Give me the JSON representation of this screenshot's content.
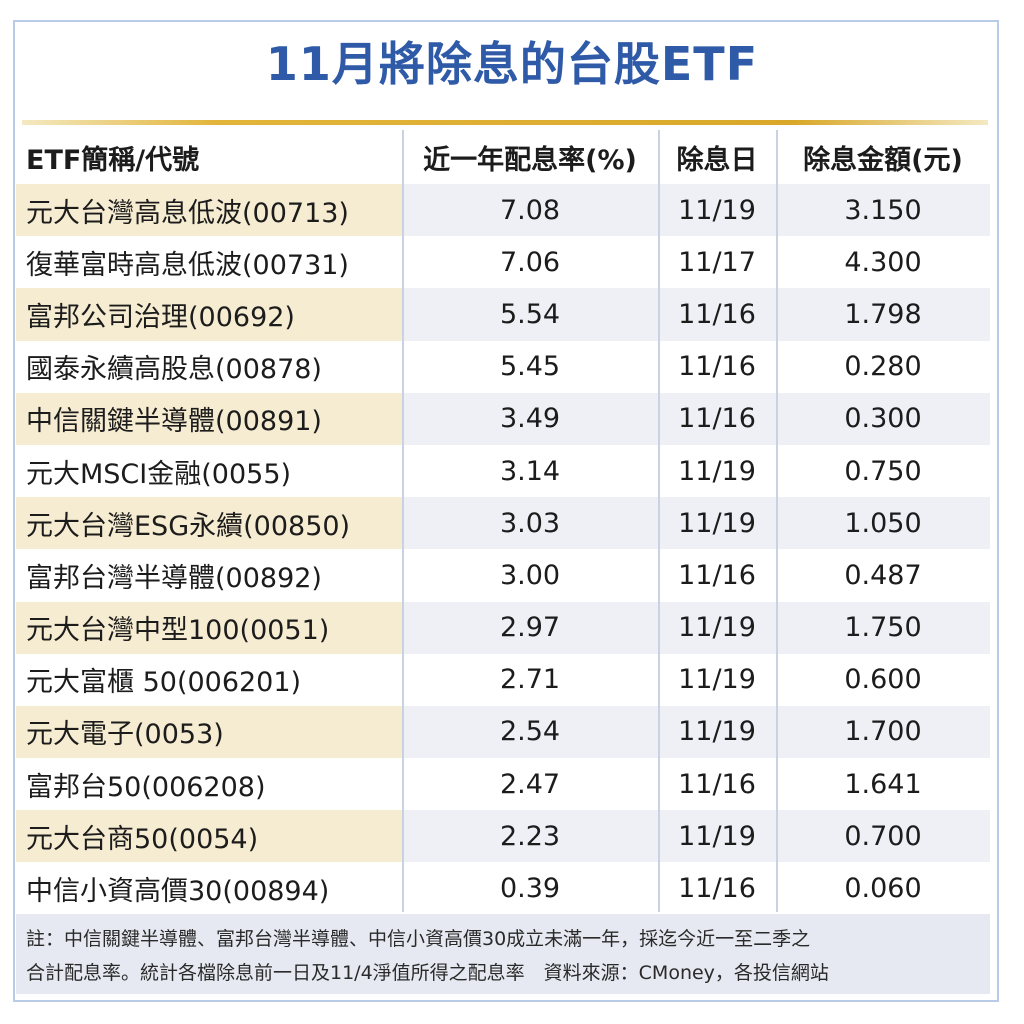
{
  "title": "11月將除息的台股ETF",
  "headers": [
    "ETF簡稱/代號",
    "近一年配息率(%)",
    "除息日",
    "除息金額(元)"
  ],
  "rows": [
    [
      "元大台灣高息低波(00713)",
      "7.08",
      "11/19",
      "3.150"
    ],
    [
      "復華富時高息低波(00731)",
      "7.06",
      "11/17",
      "4.300"
    ],
    [
      "富邦公司治理(00692)",
      "5.54",
      "11/16",
      "1.798"
    ],
    [
      "國泰永續高股息(00878)",
      "5.45",
      "11/16",
      "0.280"
    ],
    [
      "中信關鍵半導體(00891)",
      "3.49",
      "11/16",
      "0.300"
    ],
    [
      "元大MSCI金融(0055)",
      "3.14",
      "11/19",
      "0.750"
    ],
    [
      "元大台灣ESG永續(00850)",
      "3.03",
      "11/19",
      "1.050"
    ],
    [
      "富邦台灣半導體(00892)",
      "3.00",
      "11/16",
      "0.487"
    ],
    [
      "元大台灣中型100(0051)",
      "2.97",
      "11/19",
      "1.750"
    ],
    [
      "元大富櫃 50(006201)",
      "2.71",
      "11/19",
      "0.600"
    ],
    [
      "元大電子(0053)",
      "2.54",
      "11/19",
      "1.700"
    ],
    [
      "富邦台50(006208)",
      "2.47",
      "11/16",
      "1.641"
    ],
    [
      "元大台商50(0054)",
      "2.23",
      "11/19",
      "0.700"
    ],
    [
      "中信小資高價30(00894)",
      "0.39",
      "11/16",
      "0.060"
    ]
  ],
  "note": {
    "line1": "註：中信關鍵半導體、富邦台灣半導體、中信小資高價30成立未滿一年，採迄今近一至二季之",
    "line2": "合計配息率。統計各檔除息前一日及11/4淨值所得之配息率　資料來源：CMoney，各投信網站"
  },
  "colors": {
    "title": "#2f5aa8",
    "accent_rule": "#d9a82a",
    "shade_name": "#f6ecd1",
    "shade_data": "#eef0f6"
  }
}
